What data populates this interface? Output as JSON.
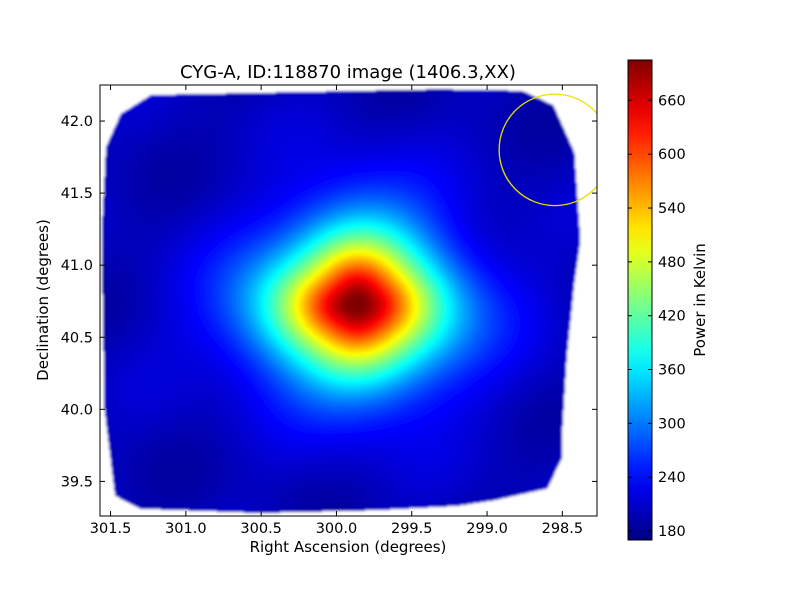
{
  "chart_data": {
    "type": "heatmap",
    "title": "CYG-A, ID:118870 image (1406.3,XX)",
    "xlabel": "Right Ascension (degrees)",
    "ylabel": "Declination (degrees)",
    "xlim": [
      301.57,
      298.27
    ],
    "ylim": [
      39.26,
      42.25
    ],
    "x_ticks": [
      {
        "value": 301.5,
        "label": "301.5"
      },
      {
        "value": 301.0,
        "label": "301.0"
      },
      {
        "value": 300.5,
        "label": "300.5"
      },
      {
        "value": 300.0,
        "label": "300.0"
      },
      {
        "value": 299.5,
        "label": "299.5"
      },
      {
        "value": 299.0,
        "label": "299.0"
      },
      {
        "value": 298.5,
        "label": "298.5"
      }
    ],
    "y_ticks": [
      {
        "value": 39.5,
        "label": "39.5"
      },
      {
        "value": 40.0,
        "label": "40.0"
      },
      {
        "value": 40.5,
        "label": "40.5"
      },
      {
        "value": 41.0,
        "label": "41.0"
      },
      {
        "value": 41.5,
        "label": "41.5"
      },
      {
        "value": 42.0,
        "label": "42.0"
      }
    ],
    "colormap": "jet",
    "colorbar": {
      "label": "Power in Kelvin",
      "range": [
        170,
        705
      ],
      "ticks": [
        {
          "value": 180,
          "label": "180"
        },
        {
          "value": 240,
          "label": "240"
        },
        {
          "value": 300,
          "label": "300"
        },
        {
          "value": 360,
          "label": "360"
        },
        {
          "value": 420,
          "label": "420"
        },
        {
          "value": 480,
          "label": "480"
        },
        {
          "value": 540,
          "label": "540"
        },
        {
          "value": 600,
          "label": "600"
        },
        {
          "value": 660,
          "label": "660"
        }
      ]
    },
    "background_level": 200,
    "source": {
      "ra": 299.87,
      "dec": 40.73,
      "peak": 700,
      "sigma_ra": 0.38,
      "sigma_dec": 0.34
    },
    "coverage_boundary": [
      [
        301.23,
        42.18
      ],
      [
        300.32,
        42.2
      ],
      [
        299.32,
        42.22
      ],
      [
        298.77,
        42.21
      ],
      [
        298.56,
        42.11
      ],
      [
        298.42,
        41.78
      ],
      [
        298.38,
        41.17
      ],
      [
        298.42,
        40.88
      ],
      [
        298.47,
        40.37
      ],
      [
        298.5,
        39.87
      ],
      [
        298.5,
        39.67
      ],
      [
        298.6,
        39.45
      ],
      [
        298.95,
        39.37
      ],
      [
        299.2,
        39.33
      ],
      [
        299.74,
        39.3
      ],
      [
        300.52,
        39.28
      ],
      [
        301.3,
        39.31
      ],
      [
        301.47,
        39.4
      ],
      [
        301.54,
        40.0
      ],
      [
        301.56,
        41.2
      ],
      [
        301.53,
        41.82
      ],
      [
        301.43,
        42.05
      ]
    ],
    "beam_circle": {
      "ra": 298.55,
      "dec": 41.8,
      "radius_deg": 0.37,
      "color": "#e8e000"
    },
    "grid": false
  }
}
